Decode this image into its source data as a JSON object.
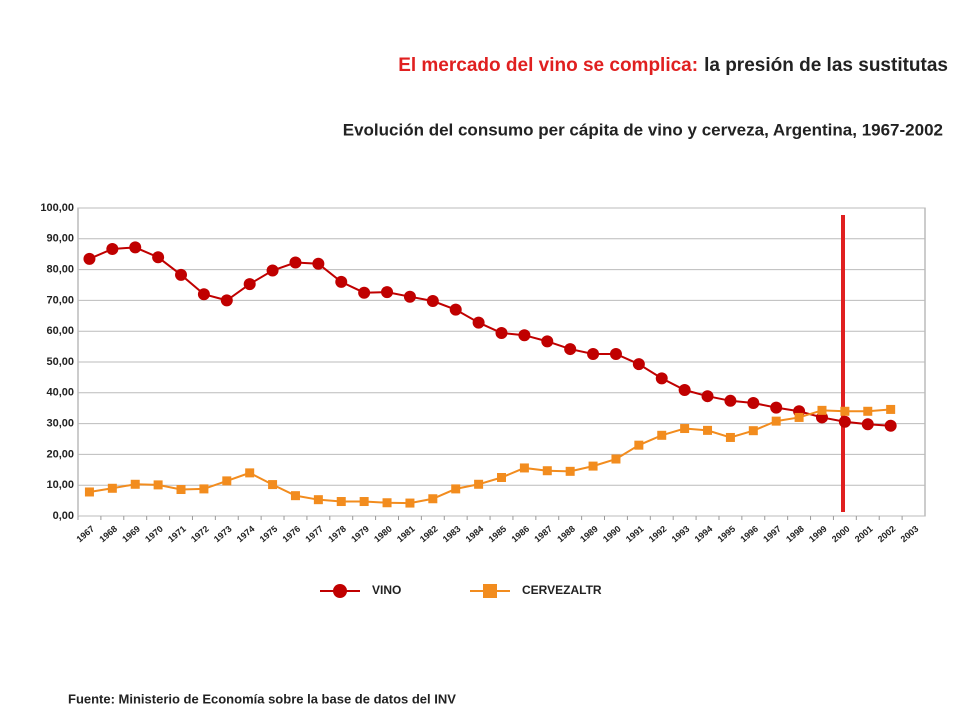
{
  "chart_data": {
    "type": "line",
    "title_part1": "El mercado del vino se complica:",
    "title_part2": "la presión de las sustitutas",
    "subtitle": "Evolución del consumo per cápita de vino y cerveza, Argentina, 1967-2002",
    "source": "Fuente: Ministerio de Economía sobre la base de datos del INV",
    "categories": [
      "1967",
      "1968",
      "1969",
      "1970",
      "1971",
      "1972",
      "1973",
      "1974",
      "1975",
      "1976",
      "1977",
      "1978",
      "1979",
      "1980",
      "1981",
      "1982",
      "1983",
      "1984",
      "1985",
      "1986",
      "1987",
      "1988",
      "1989",
      "1990",
      "1991",
      "1992",
      "1993",
      "1994",
      "1995",
      "1996",
      "1997",
      "1998",
      "1999",
      "2000",
      "2001",
      "2002",
      "2003"
    ],
    "series": [
      {
        "name": "VINO",
        "color": "#c00000",
        "marker": "circle",
        "values": [
          83.5,
          86.7,
          87.2,
          84,
          78.3,
          72,
          70,
          75.3,
          79.7,
          82.3,
          81.9,
          76,
          72.5,
          72.7,
          71.2,
          69.8,
          67,
          62.8,
          59.4,
          58.7,
          56.7,
          54.2,
          52.6,
          52.6,
          49.3,
          44.7,
          40.9,
          38.9,
          37.4,
          36.7,
          35.2,
          34,
          32,
          30.6,
          29.8,
          29.3,
          null
        ]
      },
      {
        "name": "CERVEZALTR",
        "color": "#f28c1e",
        "marker": "square",
        "values": [
          7.8,
          9,
          10.3,
          10.1,
          8.6,
          8.8,
          11.4,
          14,
          10.2,
          6.6,
          5.3,
          4.7,
          4.7,
          4.3,
          4.2,
          5.6,
          8.8,
          10.3,
          12.5,
          15.6,
          14.7,
          14.5,
          16.2,
          18.5,
          23,
          26.2,
          28.4,
          27.8,
          25.5,
          27.7,
          30.8,
          32,
          34.3,
          34,
          34,
          34.6,
          null
        ]
      }
    ],
    "ylim": [
      0,
      100
    ],
    "yticks": [
      {
        "value": 0,
        "label": "0,00"
      },
      {
        "value": 10,
        "label": "10,00"
      },
      {
        "value": 20,
        "label": "20,00"
      },
      {
        "value": 30,
        "label": "30,00"
      },
      {
        "value": 40,
        "label": "40,00"
      },
      {
        "value": 50,
        "label": "50,00"
      },
      {
        "value": 60,
        "label": "60,00"
      },
      {
        "value": 70,
        "label": "70,00"
      },
      {
        "value": 80,
        "label": "80,00"
      },
      {
        "value": 90,
        "label": "90,00"
      },
      {
        "value": 100,
        "label": "100,00"
      }
    ],
    "grid": true
  }
}
